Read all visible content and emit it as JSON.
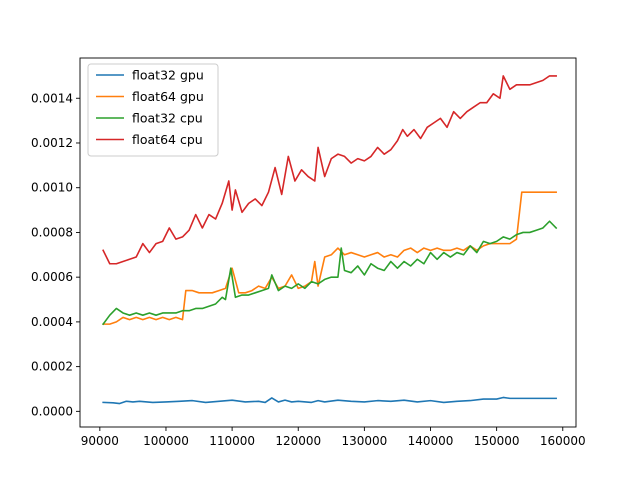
{
  "chart_data": {
    "type": "line",
    "title": "",
    "xlabel": "",
    "ylabel": "",
    "xlim": [
      87000,
      162000
    ],
    "ylim": [
      -7e-05,
      0.00158
    ],
    "xticks": [
      90000,
      100000,
      110000,
      120000,
      130000,
      140000,
      150000,
      160000
    ],
    "xtick_labels": [
      "90000",
      "100000",
      "110000",
      "120000",
      "130000",
      "140000",
      "150000",
      "160000"
    ],
    "yticks": [
      0.0,
      0.0002,
      0.0004,
      0.0006,
      0.0008,
      0.001,
      0.0012,
      0.0014
    ],
    "ytick_labels": [
      "0.0000",
      "0.0002",
      "0.0004",
      "0.0006",
      "0.0008",
      "0.0010",
      "0.0012",
      "0.0014"
    ],
    "grid": false,
    "legend_position": "top-left",
    "series": [
      {
        "name": "float32 gpu",
        "color": "#1f77b4",
        "x": [
          90500,
          92000,
          93000,
          94000,
          95000,
          96000,
          98000,
          100000,
          102000,
          104000,
          106000,
          108000,
          110000,
          112000,
          114000,
          115000,
          116000,
          117000,
          118000,
          119000,
          120000,
          122000,
          123000,
          124000,
          126000,
          128000,
          130000,
          132000,
          134000,
          136000,
          138000,
          140000,
          142000,
          144000,
          146000,
          148000,
          150000,
          151000,
          152000,
          155000,
          159000
        ],
        "y": [
          4e-05,
          3.8e-05,
          3.5e-05,
          4.5e-05,
          4.2e-05,
          4.5e-05,
          4e-05,
          4.2e-05,
          4.5e-05,
          4.8e-05,
          4e-05,
          4.5e-05,
          5e-05,
          4.2e-05,
          4.5e-05,
          4e-05,
          6e-05,
          4.2e-05,
          5e-05,
          4.2e-05,
          4.5e-05,
          4e-05,
          4.8e-05,
          4.2e-05,
          5e-05,
          4.5e-05,
          4.2e-05,
          4.8e-05,
          4.5e-05,
          5e-05,
          4.2e-05,
          4.8e-05,
          4e-05,
          4.5e-05,
          4.8e-05,
          5.5e-05,
          5.5e-05,
          6.2e-05,
          5.8e-05,
          5.8e-05,
          5.8e-05
        ]
      },
      {
        "name": "float64 gpu",
        "color": "#ff7f0e",
        "x": [
          90500,
          91500,
          92500,
          93500,
          94500,
          95500,
          96500,
          97500,
          98500,
          99500,
          100500,
          101500,
          102500,
          103000,
          104000,
          105000,
          106000,
          107000,
          108000,
          109000,
          110000,
          111000,
          112000,
          113000,
          114000,
          115000,
          116000,
          117000,
          118000,
          119000,
          120000,
          121000,
          122000,
          122500,
          123000,
          124000,
          125000,
          126000,
          127000,
          128000,
          129000,
          130000,
          131000,
          132000,
          133000,
          134000,
          135000,
          136000,
          137000,
          138000,
          139000,
          140000,
          141000,
          142000,
          143000,
          144000,
          145000,
          146000,
          147000,
          148000,
          149000,
          150000,
          151000,
          152000,
          153000,
          153800,
          155000,
          157000,
          159000
        ],
        "y": [
          0.00039,
          0.00039,
          0.0004,
          0.00042,
          0.00041,
          0.00042,
          0.00041,
          0.00042,
          0.00041,
          0.00042,
          0.00041,
          0.00042,
          0.00041,
          0.00054,
          0.00054,
          0.00053,
          0.00053,
          0.00053,
          0.00054,
          0.00055,
          0.00064,
          0.00053,
          0.00053,
          0.00054,
          0.00056,
          0.00055,
          0.0006,
          0.00055,
          0.00056,
          0.00061,
          0.00055,
          0.00056,
          0.00058,
          0.00067,
          0.00056,
          0.00069,
          0.0007,
          0.00073,
          0.0007,
          0.00071,
          0.0007,
          0.00069,
          0.0007,
          0.00071,
          0.00069,
          0.0007,
          0.00069,
          0.00072,
          0.00073,
          0.00071,
          0.00073,
          0.00072,
          0.00073,
          0.00072,
          0.00072,
          0.00073,
          0.00072,
          0.00074,
          0.00072,
          0.00074,
          0.00075,
          0.00075,
          0.00075,
          0.00075,
          0.00077,
          0.00098,
          0.00098,
          0.00098,
          0.00098
        ]
      },
      {
        "name": "float32 cpu",
        "color": "#2ca02c",
        "x": [
          90500,
          91500,
          92500,
          93500,
          94500,
          95500,
          96500,
          97500,
          98500,
          99500,
          100500,
          101500,
          102500,
          103500,
          104500,
          105500,
          106500,
          107500,
          108500,
          109000,
          109800,
          110500,
          111500,
          112500,
          113500,
          114500,
          115500,
          116000,
          117000,
          118000,
          119000,
          120000,
          121000,
          122000,
          123000,
          124000,
          125000,
          126000,
          126500,
          127000,
          128000,
          129000,
          130000,
          131000,
          132000,
          133000,
          134000,
          135000,
          136000,
          137000,
          138000,
          139000,
          140000,
          141000,
          142000,
          143000,
          144000,
          145000,
          146000,
          147000,
          148000,
          149000,
          150000,
          151000,
          152000,
          153000,
          154000,
          155000,
          156000,
          157000,
          158000,
          159000
        ],
        "y": [
          0.00039,
          0.00043,
          0.00046,
          0.00044,
          0.00043,
          0.00044,
          0.00043,
          0.00044,
          0.00043,
          0.00044,
          0.00044,
          0.00044,
          0.00045,
          0.00045,
          0.00046,
          0.00046,
          0.00047,
          0.00048,
          0.00051,
          0.0005,
          0.00064,
          0.00051,
          0.00052,
          0.00052,
          0.00053,
          0.00054,
          0.00055,
          0.00061,
          0.00054,
          0.00056,
          0.00055,
          0.00057,
          0.00055,
          0.00058,
          0.00057,
          0.00059,
          0.0006,
          0.0006,
          0.00073,
          0.00063,
          0.00062,
          0.00065,
          0.00061,
          0.00066,
          0.00064,
          0.00063,
          0.00067,
          0.00064,
          0.00067,
          0.00065,
          0.00068,
          0.00066,
          0.00071,
          0.00068,
          0.00071,
          0.00069,
          0.00071,
          0.0007,
          0.00074,
          0.00071,
          0.00076,
          0.00075,
          0.00076,
          0.00078,
          0.00077,
          0.00079,
          0.0008,
          0.0008,
          0.00081,
          0.00082,
          0.00085,
          0.00082
        ]
      },
      {
        "name": "float64 cpu",
        "color": "#d62728",
        "x": [
          90500,
          91500,
          92500,
          93500,
          94500,
          95500,
          96500,
          97500,
          98500,
          99500,
          100500,
          101500,
          102500,
          103500,
          104500,
          105500,
          106500,
          107500,
          108500,
          109500,
          110000,
          110500,
          111500,
          112500,
          113500,
          114500,
          115500,
          116500,
          117500,
          118500,
          119500,
          120500,
          121500,
          122500,
          123000,
          124000,
          125000,
          126000,
          127000,
          128000,
          129000,
          130000,
          131000,
          132000,
          133000,
          134000,
          135000,
          135800,
          136500,
          137500,
          138500,
          139500,
          140500,
          141500,
          142500,
          143500,
          144500,
          145500,
          146500,
          147500,
          148500,
          149500,
          150500,
          151000,
          152000,
          153000,
          154000,
          155000,
          156000,
          157000,
          158000,
          159000
        ],
        "y": [
          0.00072,
          0.00066,
          0.00066,
          0.00067,
          0.00068,
          0.00069,
          0.00075,
          0.00071,
          0.00075,
          0.00076,
          0.00082,
          0.00077,
          0.00078,
          0.00081,
          0.00088,
          0.00082,
          0.00088,
          0.00086,
          0.00093,
          0.00103,
          0.0009,
          0.00099,
          0.00089,
          0.00093,
          0.00095,
          0.00092,
          0.00098,
          0.00109,
          0.00097,
          0.00114,
          0.00103,
          0.00108,
          0.00105,
          0.00103,
          0.00118,
          0.00105,
          0.00113,
          0.00115,
          0.00114,
          0.00111,
          0.00113,
          0.00112,
          0.00114,
          0.00118,
          0.00115,
          0.00117,
          0.00121,
          0.00126,
          0.00123,
          0.00126,
          0.00122,
          0.00127,
          0.00129,
          0.00131,
          0.00127,
          0.00134,
          0.00131,
          0.00134,
          0.00136,
          0.00138,
          0.00138,
          0.00142,
          0.0014,
          0.0015,
          0.00144,
          0.00146,
          0.00146,
          0.00146,
          0.00147,
          0.00148,
          0.0015,
          0.0015
        ]
      }
    ]
  }
}
